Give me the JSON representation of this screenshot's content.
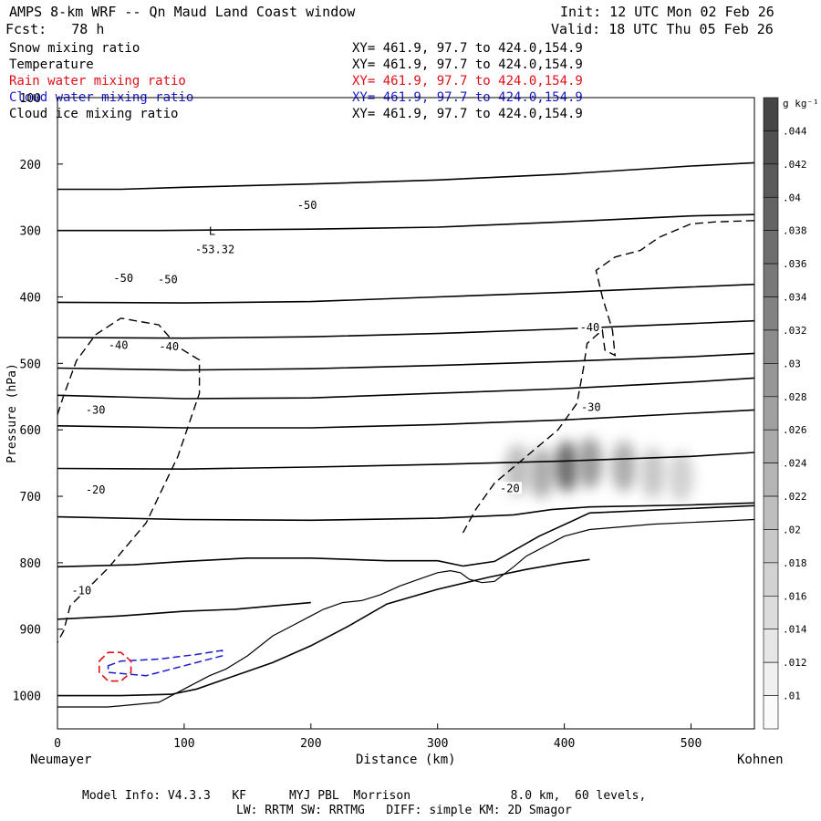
{
  "header": {
    "title": "AMPS 8-km WRF -- Qn Maud Land Coast window",
    "init": "Init: 12 UTC Mon 02 Feb 26",
    "fcst": "Fcst:   78 h",
    "valid": "Valid: 18 UTC Thu 05 Feb 26"
  },
  "fields": [
    {
      "name": "Snow mixing ratio",
      "xy": "XY= 461.9, 97.7 to 424.0,154.9",
      "color": "#000000"
    },
    {
      "name": "Temperature",
      "xy": "XY= 461.9, 97.7 to 424.0,154.9",
      "color": "#000000"
    },
    {
      "name": "Rain water mixing ratio",
      "xy": "XY= 461.9, 97.7 to 424.0,154.9",
      "color": "#e0101a"
    },
    {
      "name": "Cloud water mixing ratio",
      "xy": "XY= 461.9, 97.7 to 424.0,154.9",
      "color": "#1a1ad0"
    },
    {
      "name": "Cloud ice mixing ratio",
      "xy": "XY= 461.9, 97.7 to 424.0,154.9",
      "color": "#000000"
    }
  ],
  "footer": {
    "line1": "Model Info: V4.3.3   KF      MYJ PBL  Morrison              8.0 km,  60 levels,",
    "line2": "LW: RRTM SW: RRTMG   DIFF: simple KM: 2D Smagor"
  },
  "chart_data": {
    "type": "cross-section",
    "xlabel": "Distance (km)",
    "ylabel": "Pressure (hPa)",
    "xlim": [
      0,
      550
    ],
    "ylim": [
      1050,
      100
    ],
    "x_ticks": [
      0,
      100,
      200,
      300,
      400,
      500
    ],
    "y_ticks": [
      200,
      300,
      400,
      500,
      600,
      700,
      800,
      900,
      1000
    ],
    "y_top_label": "100",
    "left_endpoint": "Neumayer",
    "right_endpoint": "Kohnen",
    "colorbar": {
      "unit": "g kg⁻¹",
      "ticks": [
        ".044",
        ".042",
        ".04",
        ".038",
        ".036",
        ".034",
        ".032",
        ".03",
        ".028",
        ".026",
        ".024",
        ".022",
        ".02",
        ".018",
        ".016",
        ".014",
        ".012",
        ".01"
      ]
    },
    "low_center": {
      "label": "L",
      "value": "-53.32",
      "x": 123,
      "p": 300
    },
    "contour_labels": [
      {
        "text": "-50",
        "x": 197,
        "p": 262
      },
      {
        "text": "-50",
        "x": 52,
        "p": 372
      },
      {
        "text": "-50",
        "x": 87,
        "p": 374
      },
      {
        "text": "-40",
        "x": 48,
        "p": 473
      },
      {
        "text": "-40",
        "x": 88,
        "p": 475
      },
      {
        "text": "-40",
        "x": 420,
        "p": 446
      },
      {
        "text": "-30",
        "x": 30,
        "p": 570
      },
      {
        "text": "-30",
        "x": 421,
        "p": 566
      },
      {
        "text": "-20",
        "x": 30,
        "p": 690
      },
      {
        "text": "-20",
        "x": 357,
        "p": 688
      },
      {
        "text": "-10",
        "x": 19,
        "p": 842
      }
    ],
    "isotherms": [
      [
        [
          0,
          238
        ],
        [
          50,
          238
        ],
        [
          100,
          235
        ],
        [
          200,
          230
        ],
        [
          300,
          224
        ],
        [
          400,
          215
        ],
        [
          500,
          203
        ],
        [
          550,
          198
        ]
      ],
      [
        [
          0,
          300
        ],
        [
          80,
          300
        ],
        [
          200,
          298
        ],
        [
          300,
          295
        ],
        [
          400,
          287
        ],
        [
          500,
          278
        ],
        [
          550,
          276
        ]
      ],
      [
        [
          0,
          408
        ],
        [
          100,
          409
        ],
        [
          200,
          407
        ],
        [
          300,
          400
        ],
        [
          400,
          393
        ],
        [
          500,
          385
        ],
        [
          550,
          381
        ]
      ],
      [
        [
          0,
          461
        ],
        [
          100,
          462
        ],
        [
          200,
          460
        ],
        [
          300,
          455
        ],
        [
          400,
          448
        ],
        [
          500,
          440
        ],
        [
          550,
          436
        ]
      ],
      [
        [
          0,
          507
        ],
        [
          100,
          510
        ],
        [
          200,
          508
        ],
        [
          300,
          503
        ],
        [
          400,
          497
        ],
        [
          500,
          490
        ],
        [
          550,
          485
        ]
      ],
      [
        [
          0,
          548
        ],
        [
          100,
          553
        ],
        [
          200,
          552
        ],
        [
          300,
          545
        ],
        [
          400,
          538
        ],
        [
          500,
          528
        ],
        [
          550,
          522
        ]
      ],
      [
        [
          0,
          594
        ],
        [
          100,
          597
        ],
        [
          200,
          597
        ],
        [
          300,
          592
        ],
        [
          400,
          585
        ],
        [
          500,
          575
        ],
        [
          550,
          570
        ]
      ],
      [
        [
          0,
          658
        ],
        [
          100,
          659
        ],
        [
          200,
          656
        ],
        [
          300,
          652
        ],
        [
          400,
          647
        ],
        [
          500,
          640
        ],
        [
          550,
          634
        ]
      ],
      [
        [
          0,
          731
        ],
        [
          100,
          735
        ],
        [
          200,
          736
        ],
        [
          300,
          733
        ],
        [
          360,
          728
        ],
        [
          390,
          720
        ],
        [
          420,
          716
        ],
        [
          500,
          713
        ],
        [
          550,
          710
        ]
      ],
      [
        [
          0,
          806
        ],
        [
          60,
          803
        ],
        [
          100,
          798
        ],
        [
          150,
          793
        ],
        [
          200,
          793
        ],
        [
          260,
          797
        ],
        [
          300,
          797
        ],
        [
          320,
          805
        ],
        [
          345,
          798
        ],
        [
          380,
          760
        ],
        [
          420,
          725
        ],
        [
          550,
          714
        ]
      ],
      [
        [
          0,
          885
        ],
        [
          50,
          880
        ],
        [
          100,
          873
        ],
        [
          140,
          870
        ],
        [
          170,
          865
        ],
        [
          200,
          860
        ]
      ],
      [
        [
          0,
          1000
        ],
        [
          50,
          1000
        ],
        [
          90,
          998
        ],
        [
          110,
          990
        ],
        [
          140,
          970
        ],
        [
          170,
          950
        ],
        [
          200,
          925
        ],
        [
          230,
          895
        ],
        [
          260,
          862
        ],
        [
          300,
          840
        ],
        [
          340,
          822
        ],
        [
          370,
          810
        ],
        [
          400,
          800
        ],
        [
          420,
          795
        ]
      ]
    ],
    "terrain": [
      [
        0,
        1017
      ],
      [
        40,
        1017
      ],
      [
        80,
        1010
      ],
      [
        100,
        990
      ],
      [
        120,
        970
      ],
      [
        133,
        960
      ],
      [
        150,
        940
      ],
      [
        170,
        910
      ],
      [
        185,
        895
      ],
      [
        200,
        880
      ],
      [
        210,
        870
      ],
      [
        225,
        860
      ],
      [
        240,
        857
      ],
      [
        255,
        848
      ],
      [
        270,
        835
      ],
      [
        285,
        825
      ],
      [
        300,
        815
      ],
      [
        310,
        812
      ],
      [
        318,
        815
      ],
      [
        325,
        825
      ],
      [
        335,
        830
      ],
      [
        345,
        828
      ],
      [
        360,
        806
      ],
      [
        370,
        790
      ],
      [
        385,
        775
      ],
      [
        400,
        760
      ],
      [
        420,
        750
      ],
      [
        470,
        742
      ],
      [
        550,
        735
      ]
    ],
    "snow_contour": [
      [
        0,
        577
      ],
      [
        5,
        548
      ],
      [
        15,
        496
      ],
      [
        30,
        457
      ],
      [
        50,
        432
      ],
      [
        80,
        442
      ],
      [
        95,
        475
      ],
      [
        112,
        495
      ],
      [
        112,
        545
      ],
      [
        95,
        640
      ],
      [
        70,
        740
      ],
      [
        40,
        808
      ],
      [
        10,
        865
      ],
      [
        5,
        902
      ],
      [
        0,
        920
      ]
    ],
    "snow_contour_right": [
      [
        320,
        755
      ],
      [
        330,
        720
      ],
      [
        345,
        680
      ],
      [
        370,
        640
      ],
      [
        395,
        600
      ],
      [
        410,
        560
      ],
      [
        415,
        508
      ],
      [
        418,
        470
      ],
      [
        430,
        450
      ],
      [
        432,
        480
      ],
      [
        440,
        488
      ],
      [
        438,
        450
      ],
      [
        430,
        400
      ],
      [
        425,
        360
      ],
      [
        440,
        340
      ],
      [
        460,
        330
      ],
      [
        475,
        310
      ],
      [
        500,
        290
      ],
      [
        520,
        287
      ],
      [
        550,
        285
      ]
    ],
    "cloud_water_contour": [
      [
        40,
        955
      ],
      [
        50,
        948
      ],
      [
        80,
        945
      ],
      [
        110,
        938
      ],
      [
        130,
        932
      ],
      [
        130,
        940
      ],
      [
        100,
        955
      ],
      [
        70,
        970
      ],
      [
        40,
        965
      ]
    ],
    "rain_contour": [
      [
        33,
        948
      ],
      [
        40,
        935
      ],
      [
        50,
        935
      ],
      [
        58,
        948
      ],
      [
        58,
        965
      ],
      [
        50,
        978
      ],
      [
        40,
        978
      ],
      [
        33,
        965
      ]
    ],
    "ice_blobs": [
      {
        "x": 363,
        "p": 660,
        "intensity": 0.25
      },
      {
        "x": 382,
        "p": 665,
        "intensity": 0.35
      },
      {
        "x": 402,
        "p": 655,
        "intensity": 0.7
      },
      {
        "x": 420,
        "p": 650,
        "intensity": 0.45
      },
      {
        "x": 447,
        "p": 655,
        "intensity": 0.35
      },
      {
        "x": 470,
        "p": 665,
        "intensity": 0.2
      },
      {
        "x": 492,
        "p": 670,
        "intensity": 0.15
      }
    ]
  }
}
